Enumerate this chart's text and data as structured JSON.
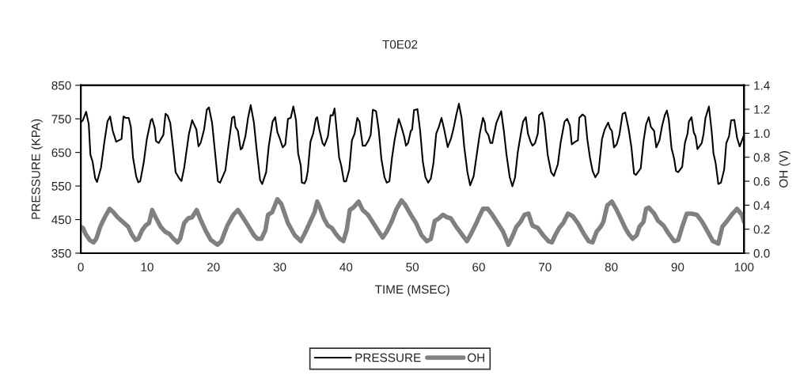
{
  "chart_data": {
    "type": "line",
    "title": "T0E02",
    "xlabel": "TIME (MSEC)",
    "ylabel": "PRESSURE (KPA)",
    "y2label": "OH (V)",
    "xlim": [
      0,
      100
    ],
    "xticks": [
      0,
      10,
      20,
      30,
      40,
      50,
      60,
      70,
      80,
      90,
      100
    ],
    "ylim": [
      350,
      850
    ],
    "yticks": [
      350,
      450,
      550,
      650,
      750,
      850
    ],
    "y2lim": [
      0,
      1.4
    ],
    "y2ticks": [
      {
        "value": 0,
        "label": "0.0"
      },
      {
        "value": 0.2,
        "label": "0.2"
      },
      {
        "value": 0.4,
        "label": "0.4"
      },
      {
        "value": 0.6,
        "label": "0.6"
      },
      {
        "value": 0.8,
        "label": "0.8"
      },
      {
        "value": 1.0,
        "label": "1.0"
      },
      {
        "value": 1.2,
        "label": "1.2"
      },
      {
        "value": 1.4,
        "label": "1.4"
      }
    ],
    "grid": false,
    "legend": "bottom",
    "marker": "none",
    "line_style": "solid",
    "series": [
      {
        "name": "PRESSURE",
        "color": "#000000",
        "x": [
          0,
          0.32,
          0.8,
          1.2,
          1.45,
          1.77,
          2.17,
          2.45,
          3.05,
          3.53,
          4.02,
          4.42,
          4.82,
          5.34,
          6.14,
          6.43,
          6.75,
          7.23,
          7.55,
          7.87,
          8.35,
          8.67,
          8.96,
          9.48,
          9.96,
          10.56,
          10.76,
          11.16,
          11.33,
          11.77,
          11.97,
          12.45,
          12.77,
          13.09,
          13.49,
          13.9,
          14.3,
          14.86,
          15.18,
          15.58,
          16.31,
          16.79,
          17.43,
          17.75,
          18.07,
          18.59,
          19.0,
          19.32,
          19.8,
          20.16,
          20.68,
          21.0,
          21.81,
          22.21,
          22.81,
          23.13,
          23.33,
          23.69,
          24.1,
          24.34,
          24.82,
          25.22,
          25.62,
          26.1,
          26.51,
          27.03,
          27.35,
          27.95,
          28.35,
          28.92,
          29.32,
          29.64,
          29.96,
          30.44,
          30.84,
          31.24,
          31.65,
          32.05,
          32.45,
          32.77,
          33.17,
          33.33,
          33.73,
          33.98,
          34.23,
          34.63,
          35.04,
          35.44,
          35.64,
          35.97,
          36.45,
          36.73,
          37.26,
          37.66,
          37.98,
          38.26,
          38.59,
          38.95,
          39.27,
          39.68,
          40.0,
          40.48,
          40.88,
          41.29,
          41.69,
          42.02,
          42.5,
          42.9,
          43.39,
          43.71,
          44.03,
          44.52,
          44.92,
          45.32,
          45.8,
          46.13,
          46.53,
          46.93,
          47.34,
          47.94,
          48.35,
          48.75,
          49.03,
          49.35,
          49.76,
          49.96,
          50.24,
          50.76,
          51.17,
          51.57,
          51.97,
          52.38,
          52.78,
          53.18,
          53.59,
          53.99,
          54.39,
          54.8,
          55.32,
          55.8,
          56.21,
          56.61,
          57.01,
          57.42,
          57.82,
          58.3,
          58.71,
          59.23,
          59.64,
          60.16,
          60.64,
          60.93,
          61.05,
          61.45,
          61.77,
          62.05,
          62.66,
          62.98,
          63.39,
          63.79,
          64.19,
          64.68,
          65.08,
          65.48,
          65.89,
          66.29,
          66.69,
          67.1,
          67.42,
          67.82,
          68.1,
          68.5,
          68.91,
          69.11,
          69.59,
          69.92,
          70.4,
          70.92,
          71.33,
          71.93,
          72.34,
          72.94,
          73.34,
          73.75,
          74.03,
          74.55,
          74.96,
          75.16,
          75.64,
          76.04,
          76.37,
          76.77,
          77.17,
          77.58,
          78.06,
          78.59,
          78.99,
          79.51,
          79.79,
          80.08,
          80.4,
          80.8,
          81.21,
          81.69,
          82.09,
          82.62,
          83.02,
          83.42,
          83.71,
          84.43,
          84.84,
          85.24,
          85.64,
          85.96,
          86.45,
          86.77,
          87.25,
          87.66,
          88.06,
          88.38,
          88.67,
          89.07,
          89.47,
          89.75,
          90.08,
          90.68,
          91.09,
          91.49,
          91.69,
          92.09,
          92.42,
          92.7,
          92.98,
          93.63,
          93.91,
          94.19,
          94.71,
          95.12,
          95.4,
          95.72,
          96.13,
          96.53,
          97.01,
          97.33,
          97.74,
          98.06,
          98.54,
          98.95,
          99.35,
          100
        ],
        "values": [
          740,
          746,
          771,
          734,
          643,
          623,
          573,
          562,
          605,
          678,
          742,
          757,
          714,
          682,
          690,
          757,
          753,
          753,
          726,
          635,
          579,
          561,
          564,
          619,
          690,
          746,
          750,
          722,
          684,
          678,
          686,
          702,
          765,
          760,
          738,
          666,
          591,
          572,
          565,
          603,
          706,
          746,
          718,
          668,
          678,
          718,
          777,
          784,
          738,
          666,
          564,
          560,
          597,
          663,
          753,
          757,
          726,
          714,
          659,
          663,
          698,
          753,
          791,
          739,
          659,
          568,
          556,
          591,
          670,
          742,
          755,
          710,
          694,
          665,
          674,
          750,
          753,
          787,
          746,
          647,
          611,
          560,
          558,
          568,
          595,
          682,
          706,
          750,
          755,
          718,
          678,
          670,
          698,
          761,
          760,
          781,
          714,
          635,
          611,
          564,
          564,
          599,
          686,
          706,
          753,
          742,
          670,
          670,
          686,
          702,
          777,
          773,
          718,
          631,
          576,
          560,
          564,
          635,
          690,
          750,
          726,
          698,
          670,
          678,
          714,
          718,
          776,
          779,
          714,
          623,
          576,
          560,
          572,
          619,
          706,
          726,
          753,
          718,
          666,
          690,
          722,
          761,
          795,
          753,
          666,
          591,
          552,
          579,
          635,
          706,
          753,
          738,
          714,
          702,
          678,
          678,
          738,
          753,
          773,
          714,
          643,
          576,
          549,
          576,
          651,
          698,
          742,
          755,
          706,
          682,
          670,
          678,
          706,
          761,
          769,
          738,
          643,
          591,
          580,
          615,
          678,
          742,
          750,
          730,
          674,
          682,
          686,
          753,
          763,
          757,
          690,
          635,
          595,
          576,
          591,
          690,
          718,
          739,
          722,
          714,
          665,
          674,
          702,
          765,
          769,
          718,
          666,
          587,
          583,
          603,
          682,
          734,
          755,
          726,
          714,
          665,
          686,
          730,
          761,
          775,
          746,
          663,
          631,
          595,
          591,
          607,
          678,
          706,
          742,
          755,
          710,
          698,
          660,
          678,
          706,
          753,
          787,
          714,
          647,
          619,
          556,
          560,
          599,
          678,
          698,
          746,
          747,
          694,
          668,
          702
        ]
      },
      {
        "name": "OH",
        "color": "#808080",
        "axis": "y2",
        "x": [
          0,
          0.32,
          0.72,
          1.33,
          1.93,
          2.33,
          2.93,
          3.53,
          4.34,
          4.94,
          5.54,
          6.35,
          7.15,
          7.75,
          8.27,
          8.67,
          9.24,
          9.76,
          10.28,
          10.76,
          11.37,
          12.05,
          12.69,
          13.37,
          13.98,
          14.58,
          14.98,
          15.58,
          16.18,
          16.79,
          17.47,
          17.99,
          18.8,
          19.6,
          20.6,
          21.2,
          22.09,
          23.01,
          23.69,
          24.42,
          25.22,
          26.1,
          26.63,
          27.23,
          27.83,
          28.23,
          28.84,
          29.64,
          30.24,
          31.24,
          32.25,
          33.17,
          33.73,
          35.24,
          35.64,
          36.05,
          36.65,
          37.26,
          37.86,
          38.47,
          39.07,
          39.59,
          40.08,
          40.56,
          41.09,
          41.89,
          42.5,
          43.3,
          44.11,
          44.92,
          45.52,
          46.13,
          46.93,
          47.54,
          48.35,
          48.95,
          49.76,
          50.56,
          51.37,
          52.18,
          52.78,
          53.38,
          53.99,
          54.59,
          55.2,
          55.8,
          56.61,
          57.42,
          58.22,
          58.83,
          59.64,
          60.04,
          60.64,
          61.37,
          62.05,
          62.86,
          63.67,
          64.47,
          65.08,
          65.68,
          66.29,
          66.89,
          67.5,
          68.1,
          68.91,
          69.71,
          70.52,
          71.04,
          71.53,
          72.13,
          72.74,
          73.46,
          74.15,
          74.96,
          75.76,
          76.57,
          77.17,
          77.78,
          78.38,
          78.79,
          79.39,
          80.08,
          80.8,
          81.41,
          82.09,
          82.62,
          83.22,
          83.83,
          84.23,
          84.84,
          85.24,
          85.64,
          86.45,
          87.05,
          87.86,
          88.67,
          89.47,
          90.08,
          90.68,
          91.37,
          92.09,
          92.9,
          93.71,
          94.51,
          95.32,
          96.13,
          96.73,
          97.33,
          98.14,
          98.95,
          99.68,
          100
        ],
        "values": [
          0.22,
          0.21,
          0.16,
          0.11,
          0.09,
          0.12,
          0.22,
          0.29,
          0.37,
          0.34,
          0.3,
          0.26,
          0.22,
          0.15,
          0.11,
          0.12,
          0.19,
          0.23,
          0.25,
          0.36,
          0.29,
          0.22,
          0.18,
          0.16,
          0.12,
          0.09,
          0.12,
          0.25,
          0.29,
          0.3,
          0.36,
          0.29,
          0.19,
          0.11,
          0.07,
          0.1,
          0.23,
          0.32,
          0.36,
          0.3,
          0.23,
          0.15,
          0.12,
          0.12,
          0.19,
          0.32,
          0.34,
          0.45,
          0.41,
          0.25,
          0.15,
          0.1,
          0.16,
          0.34,
          0.43,
          0.38,
          0.29,
          0.23,
          0.21,
          0.16,
          0.12,
          0.1,
          0.19,
          0.36,
          0.38,
          0.43,
          0.36,
          0.32,
          0.25,
          0.18,
          0.13,
          0.18,
          0.27,
          0.36,
          0.44,
          0.4,
          0.32,
          0.25,
          0.15,
          0.1,
          0.12,
          0.27,
          0.29,
          0.32,
          0.3,
          0.29,
          0.22,
          0.16,
          0.1,
          0.16,
          0.25,
          0.3,
          0.37,
          0.37,
          0.32,
          0.25,
          0.18,
          0.07,
          0.14,
          0.22,
          0.26,
          0.32,
          0.33,
          0.23,
          0.21,
          0.15,
          0.1,
          0.09,
          0.15,
          0.21,
          0.25,
          0.33,
          0.31,
          0.25,
          0.17,
          0.1,
          0.09,
          0.18,
          0.22,
          0.26,
          0.4,
          0.43,
          0.36,
          0.29,
          0.21,
          0.16,
          0.12,
          0.15,
          0.22,
          0.26,
          0.37,
          0.38,
          0.33,
          0.27,
          0.23,
          0.16,
          0.1,
          0.11,
          0.22,
          0.33,
          0.33,
          0.32,
          0.26,
          0.18,
          0.1,
          0.08,
          0.22,
          0.26,
          0.32,
          0.37,
          0.32,
          0.26
        ]
      }
    ]
  }
}
